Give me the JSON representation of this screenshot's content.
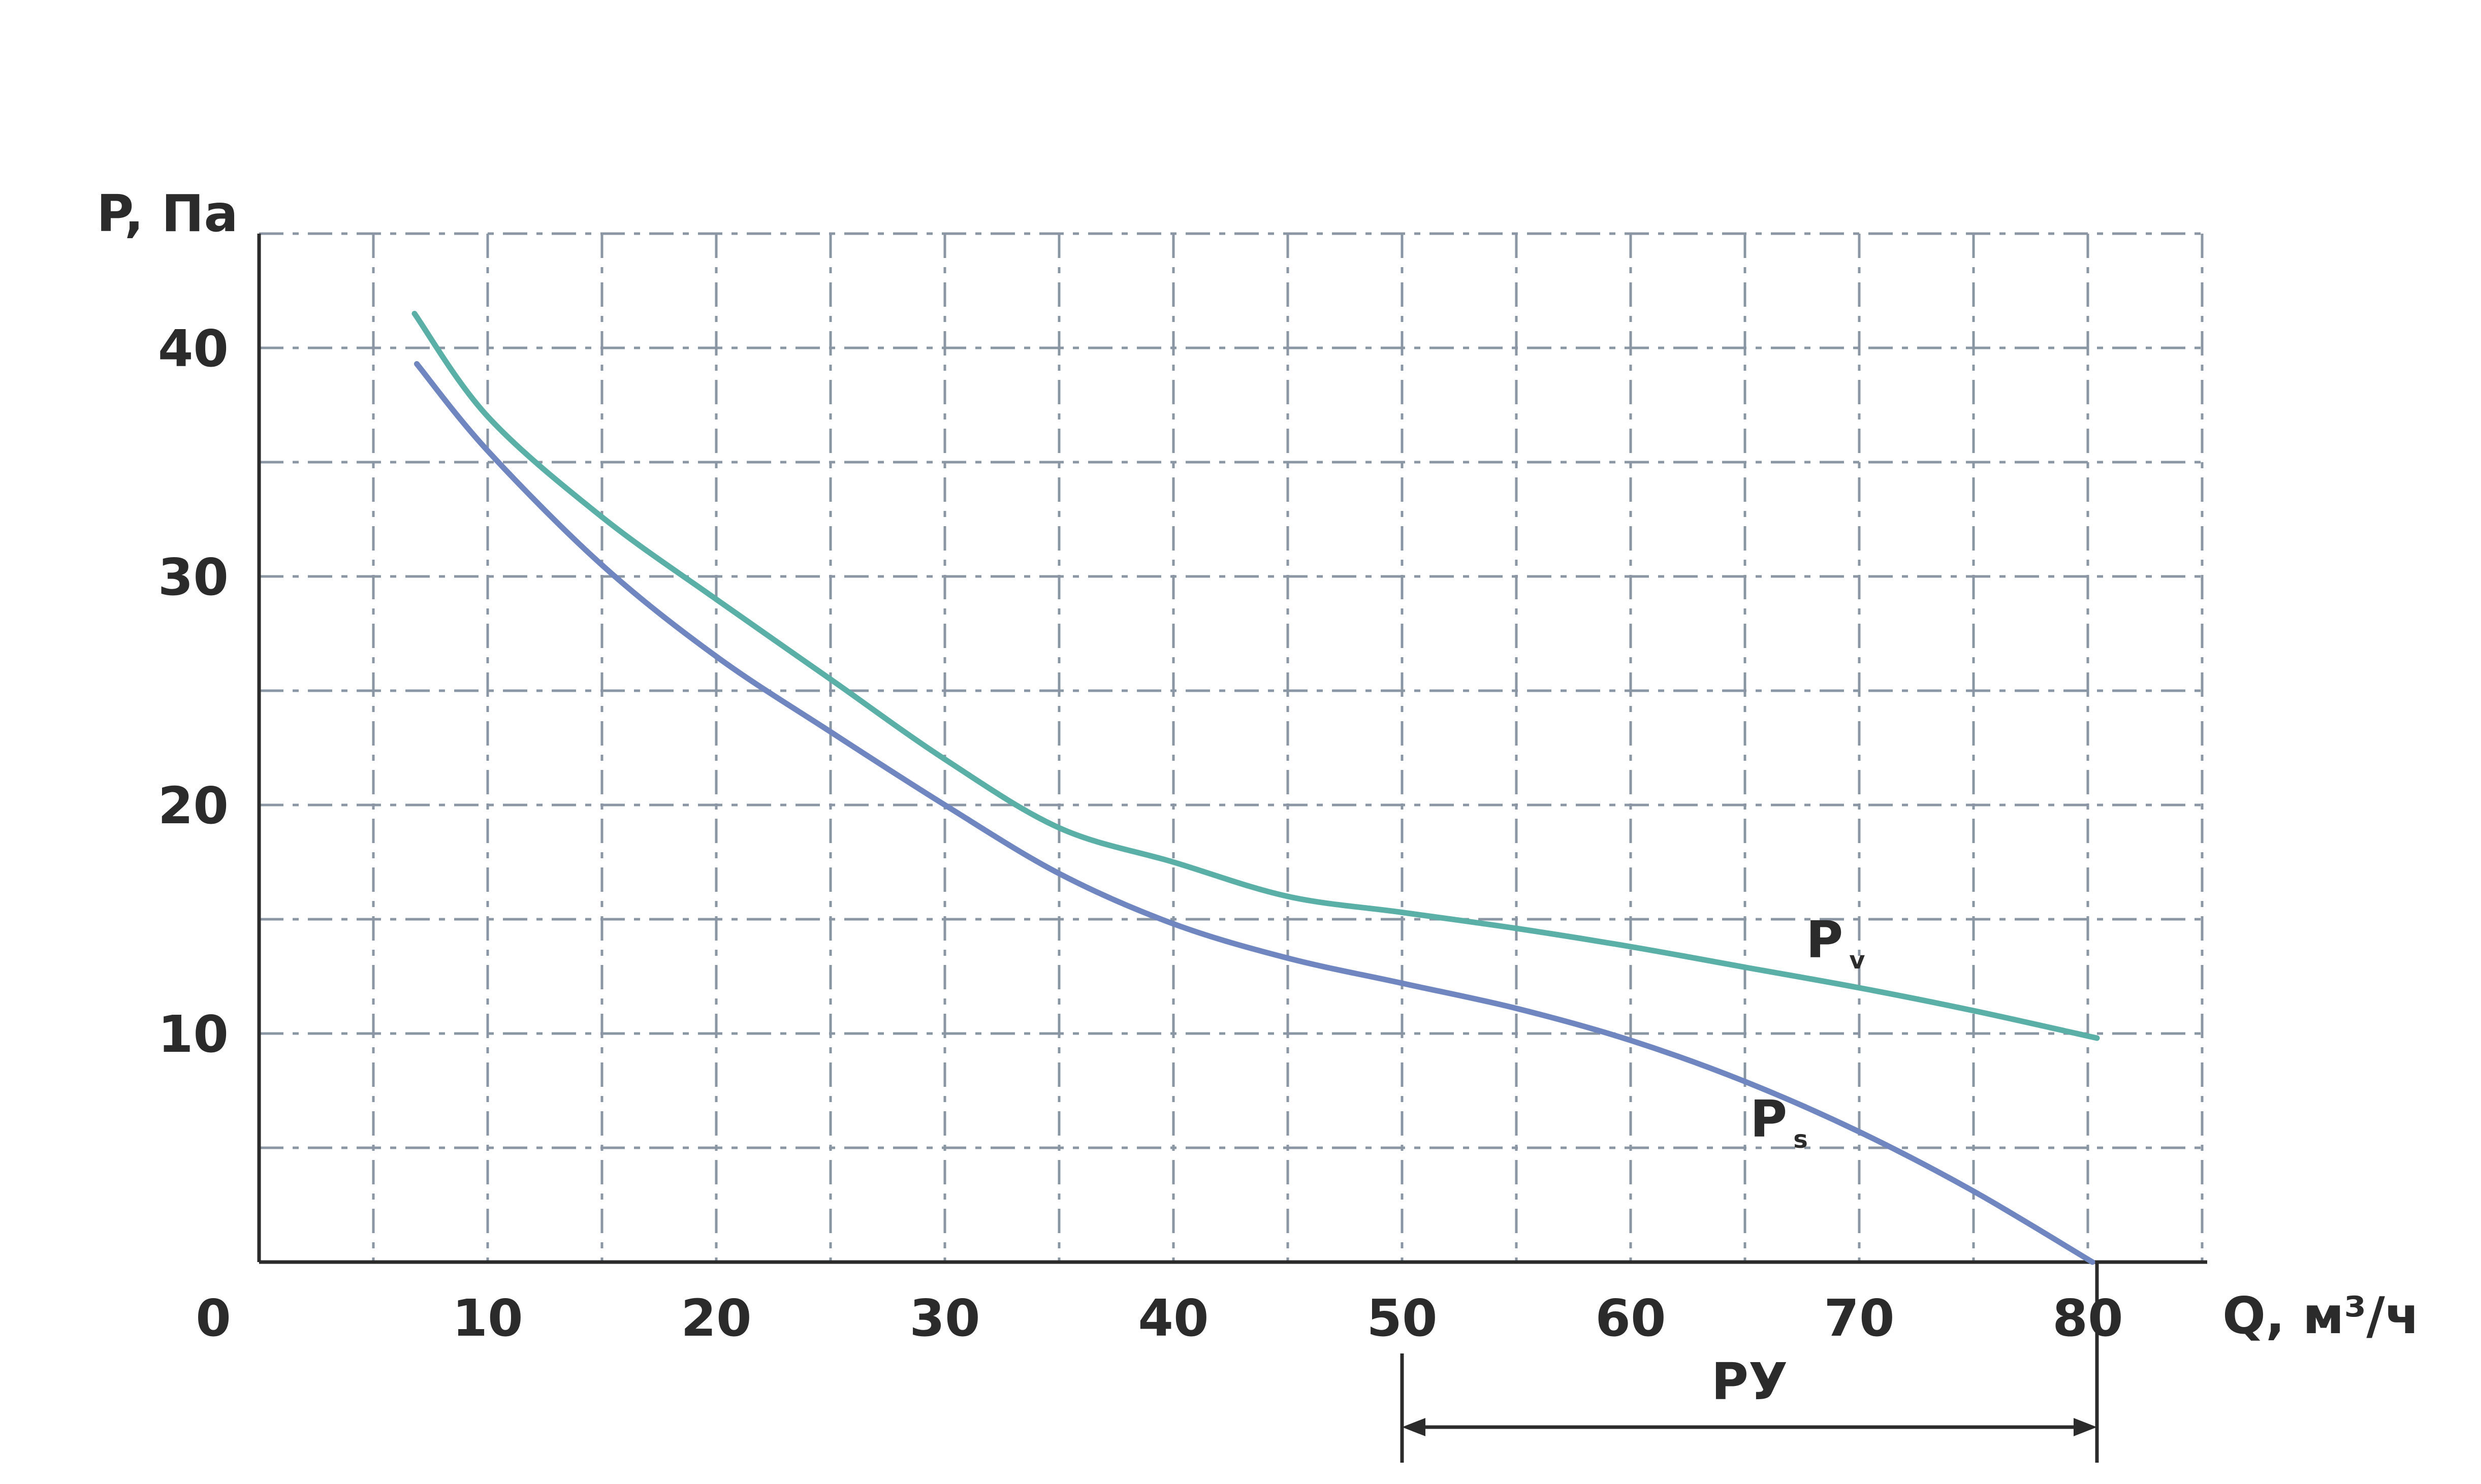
{
  "chart_data": {
    "type": "line",
    "ylabel": "P, Па",
    "xlabel": "Q, м³/ч",
    "xlim": [
      0,
      85
    ],
    "ylim": [
      0,
      45
    ],
    "x_ticks": [
      0,
      10,
      20,
      30,
      40,
      50,
      60,
      70,
      80
    ],
    "x_tick_labels": [
      "0",
      "10",
      "20",
      "30",
      "40",
      "50",
      "60",
      "70",
      "80"
    ],
    "y_ticks": [
      10,
      20,
      30,
      40
    ],
    "y_tick_labels": [
      "10",
      "20",
      "30",
      "40"
    ],
    "grid": true,
    "series": [
      {
        "name": "P",
        "subscript": "v",
        "color": "#5aafa6",
        "x": [
          6.8,
          10,
          15,
          20,
          25,
          30,
          35,
          40,
          45,
          50,
          55,
          60,
          65,
          70,
          75,
          80.4
        ],
        "y": [
          41.5,
          37,
          32.6,
          29,
          25.5,
          22,
          19,
          17.5,
          16,
          15.3,
          14.6,
          13.8,
          12.9,
          12,
          11,
          9.8
        ]
      },
      {
        "name": "P",
        "subscript": "s",
        "color": "#6f86c1",
        "x": [
          6.9,
          10,
          15,
          20,
          25,
          30,
          35,
          40,
          45,
          50,
          55,
          60,
          65,
          70,
          75,
          80.2
        ],
        "y": [
          39.3,
          35.5,
          30.5,
          26.5,
          23.2,
          20,
          17,
          14.8,
          13.3,
          12.2,
          11.1,
          9.7,
          7.9,
          5.7,
          3.1,
          0
        ]
      }
    ],
    "annotations": [
      {
        "text": "РУ",
        "type": "range",
        "x_from": 50,
        "x_to": 80.4
      }
    ]
  }
}
